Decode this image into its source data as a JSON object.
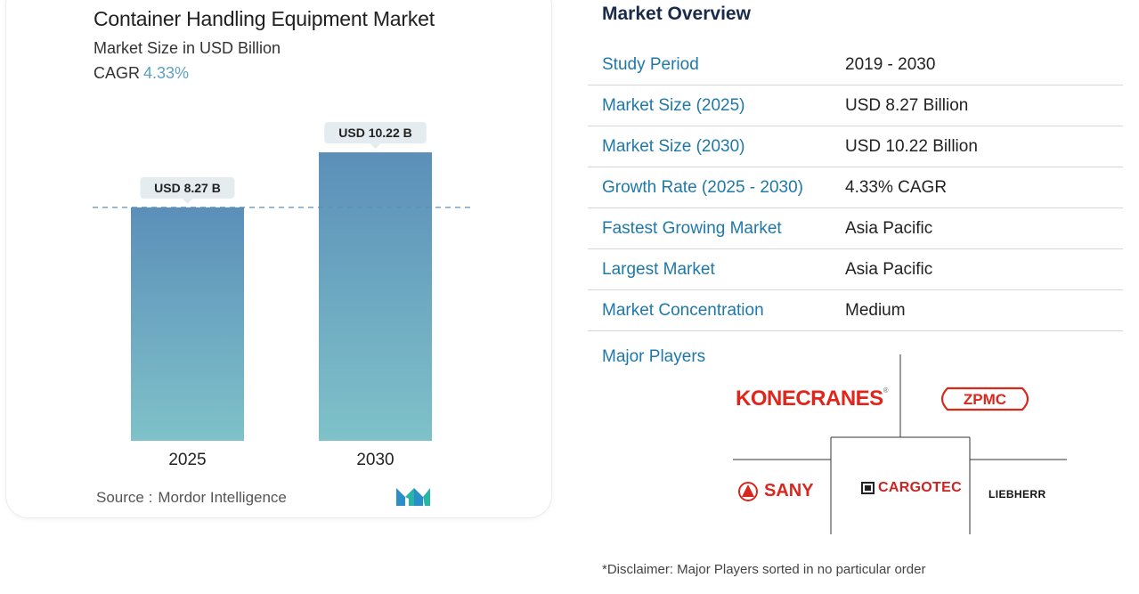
{
  "chart_data": {
    "type": "bar",
    "title": "Container Handling Equipment Market",
    "subtitle": "Market Size in USD Billion",
    "cagr_label": "CAGR",
    "cagr_value": "4.33%",
    "categories": [
      "2025",
      "2030"
    ],
    "values": [
      8.27,
      10.22
    ],
    "data_labels": [
      "USD 8.27 B",
      "USD 10.22 B"
    ],
    "ylim": [
      0,
      11.2
    ],
    "reference_line_value": 8.27,
    "bar_gradient": [
      "#5b8fb9",
      "#7fc2c9"
    ],
    "grid": false,
    "source_label": "Source :",
    "source_value": "Mordor Intelligence"
  },
  "overview": {
    "title": "Market Overview",
    "rows": [
      {
        "key": "Study Period",
        "value": "2019 - 2030"
      },
      {
        "key": "Market Size (2025)",
        "value": "USD 8.27 Billion"
      },
      {
        "key": "Market Size (2030)",
        "value": "USD 10.22 Billion"
      },
      {
        "key": "Growth Rate (2025 - 2030)",
        "value": "4.33% CAGR"
      },
      {
        "key": "Fastest Growing Market",
        "value": "Asia Pacific"
      },
      {
        "key": "Largest Market",
        "value": "Asia Pacific"
      },
      {
        "key": "Market Concentration",
        "value": "Medium"
      }
    ]
  },
  "players": {
    "title": "Major Players",
    "logos": {
      "konecranes": "KONECRANES",
      "zpmc": "ZPMC",
      "sany": "SANY",
      "cargotec": "CARGOTEC",
      "liebherr": "LIEBHERR"
    }
  },
  "disclaimer": "*Disclaimer: Major Players sorted in no particular order",
  "colors": {
    "accent_blue": "#2078a8",
    "cagr_blue": "#5ea0c2",
    "konecranes_red": "#e0261c",
    "reference_line": "#5b8fb9"
  }
}
